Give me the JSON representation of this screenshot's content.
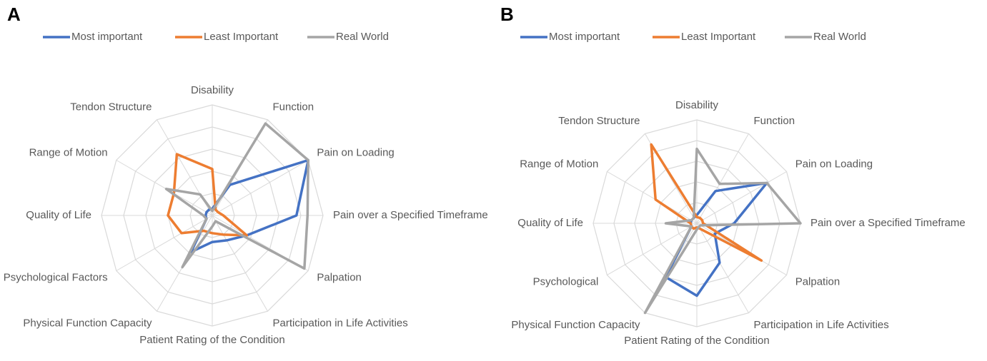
{
  "chart_data": [
    {
      "type": "radar",
      "panel": "A",
      "categories": [
        "Disability",
        "Function",
        "Pain on Loading",
        "Pain over a Specified Timeframe",
        "Palpation",
        "Participation in Life Activities",
        "Patient Rating of the Condition",
        "Physical Function Capacity",
        "Psychological Factors",
        "Quality of Life",
        "Range of Motion",
        "Tendon Structure"
      ],
      "rlim": [
        0,
        5
      ],
      "rticks": [
        1,
        2,
        3,
        4,
        5
      ],
      "grid": true,
      "legend": "top",
      "series": [
        {
          "name": "Most important",
          "color": "#4472c4",
          "values": [
            0.3,
            1.6,
            5,
            3.8,
            1.8,
            1.3,
            1.2,
            1.9,
            0.3,
            0.3,
            0.3,
            0.3
          ]
        },
        {
          "name": "Least Important",
          "color": "#ed7d31",
          "values": [
            2.1,
            0.3,
            0.3,
            0.5,
            1.8,
            1,
            0.8,
            0.8,
            1.6,
            2,
            2,
            3.2
          ]
        },
        {
          "name": "Real World",
          "color": "#a5a5a5",
          "values": [
            0.2,
            4.8,
            5,
            4.3,
            4.8,
            0.3,
            0.5,
            2.7,
            0.3,
            0.4,
            2.4,
            1.1
          ]
        }
      ]
    },
    {
      "type": "radar",
      "panel": "B",
      "categories": [
        "Disability",
        "Function",
        "Pain on Loading",
        "Pain over a Specified Timeframe",
        "Palpation",
        "Participation in Life Activities",
        "Patient Rating of the Condition",
        "Physical Function Capacity",
        "Psychological",
        "Quality of Life",
        "Range of Motion",
        "Tendon Structure"
      ],
      "rlim": [
        0,
        5
      ],
      "rticks": [
        1,
        2,
        3,
        4,
        5
      ],
      "grid": true,
      "legend": "top",
      "series": [
        {
          "name": "Most important",
          "color": "#4472c4",
          "values": [
            0.4,
            1.8,
            3.9,
            1.8,
            1,
            2.2,
            3.5,
            3,
            0.3,
            0.3,
            0.3,
            0.3
          ]
        },
        {
          "name": "Least Important",
          "color": "#ed7d31",
          "values": [
            0.3,
            0.3,
            0.3,
            0.3,
            3.6,
            0.3,
            0.2,
            0.3,
            0.3,
            0.3,
            2.3,
            4.4
          ]
        },
        {
          "name": "Real World",
          "color": "#a5a5a5",
          "values": [
            3.6,
            2.2,
            3.9,
            5,
            0.2,
            0.2,
            0.3,
            5,
            0.3,
            1.5,
            0.3,
            0.3
          ]
        }
      ]
    }
  ]
}
